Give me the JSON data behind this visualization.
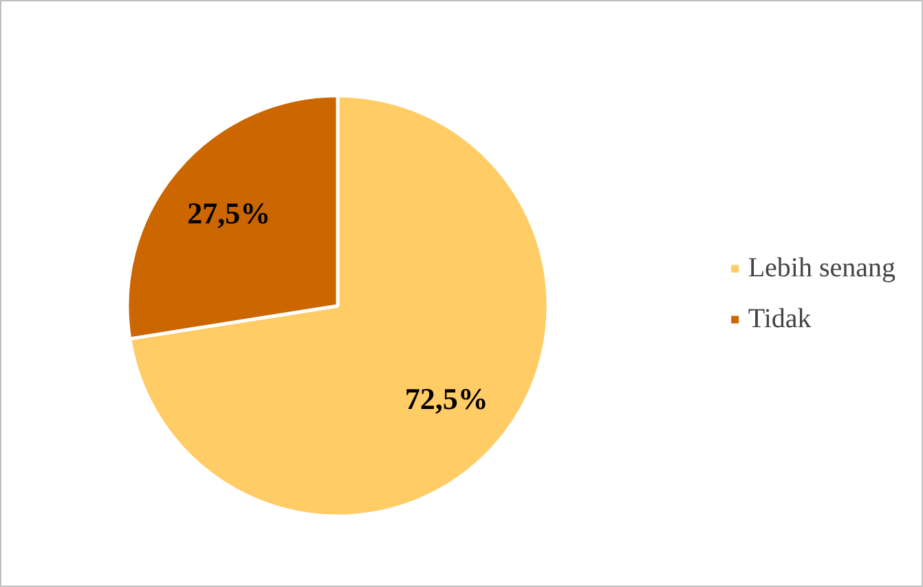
{
  "chart_data": {
    "type": "pie",
    "categories": [
      "Lebih senang",
      "Tidak"
    ],
    "values": [
      72.5,
      27.5
    ],
    "colors": [
      "#ffcc66",
      "#cc6600"
    ],
    "value_labels": [
      "72,5%",
      "27,5%"
    ],
    "legend": "right"
  }
}
